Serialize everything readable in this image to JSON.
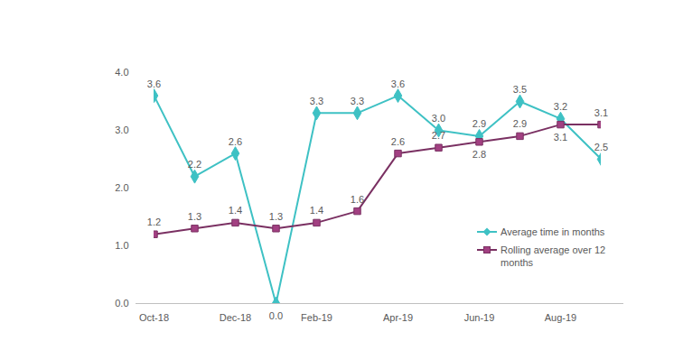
{
  "chart_data": {
    "type": "line",
    "categories": [
      "Oct-18",
      null,
      "Dec-18",
      null,
      "Feb-19",
      null,
      "Apr-19",
      null,
      "Jun-19",
      null,
      "Aug-19",
      null
    ],
    "series": [
      {
        "name": "Average time in months",
        "color": "#3ec1c4",
        "marker": "diamond",
        "values": [
          3.6,
          2.2,
          2.6,
          0.0,
          3.3,
          3.3,
          3.6,
          3.0,
          2.9,
          3.5,
          3.2,
          2.5
        ],
        "value_labels": [
          "3.6",
          "2.2",
          "2.6",
          "0.0",
          "3.3",
          "3.3",
          "3.6",
          "3.0",
          "2.9",
          "3.5",
          "3.2",
          "2.5"
        ]
      },
      {
        "name": "Rolling average over 12 months",
        "color": "#7a3062",
        "marker": "square",
        "values": [
          1.2,
          1.3,
          1.4,
          1.3,
          1.4,
          1.6,
          2.6,
          2.7,
          2.8,
          2.9,
          3.1,
          3.1
        ],
        "value_labels": [
          "1.2",
          "1.3",
          "1.4",
          "1.3",
          "1.4",
          "1.6",
          "2.6",
          "2.7",
          "2.8",
          "2.9",
          "3.1",
          "3.1"
        ]
      }
    ],
    "ylim": [
      0,
      4
    ],
    "yticks": [
      {
        "value": 0,
        "label": "0.0"
      },
      {
        "value": 1,
        "label": "1.0"
      },
      {
        "value": 2,
        "label": "2.0"
      },
      {
        "value": 3,
        "label": "3.0"
      },
      {
        "value": 4,
        "label": "4.0"
      }
    ],
    "grid": false,
    "data_labels": true,
    "legend": "lower right"
  }
}
